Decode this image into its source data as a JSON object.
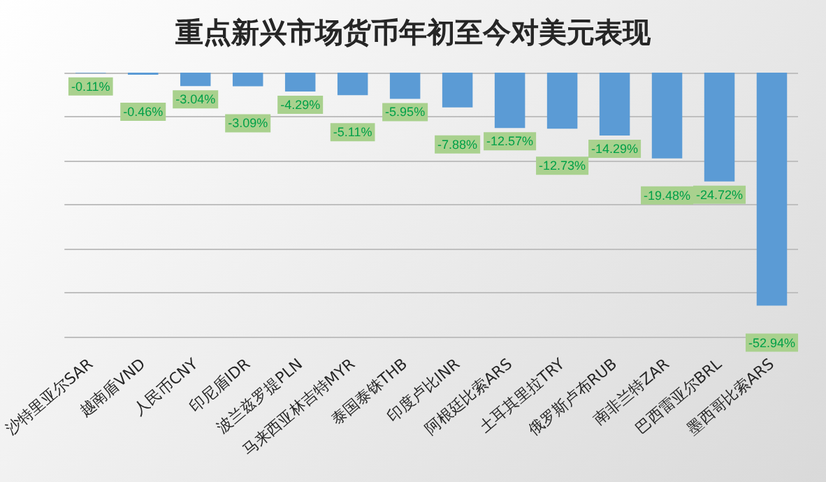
{
  "chart_data": {
    "type": "bar",
    "title": "重点新兴市场货币年初至今对美元表现",
    "categories": [
      "沙特里亚尔SAR",
      "越南盾VND",
      "人民币CNY",
      "印尼盾IDR",
      "波兰兹罗提PLN",
      "马来西亚林吉特MYR",
      "泰国泰铢THB",
      "印度卢比INR",
      "阿根廷比索ARS",
      "土耳其里拉TRY",
      "俄罗斯卢布RUB",
      "南非兰特ZAR",
      "巴西雷亚尔BRL",
      "墨西哥比索ARS"
    ],
    "values": [
      -0.11,
      -0.46,
      -3.04,
      -3.09,
      -4.29,
      -5.11,
      -5.95,
      -7.88,
      -12.57,
      -12.73,
      -14.29,
      -19.48,
      -24.72,
      -52.94
    ],
    "value_labels": [
      "-0.11%",
      "-0.46%",
      "-3.04%",
      "-3.09%",
      "-4.29%",
      "-5.11%",
      "-5.95%",
      "-7.88%",
      "-12.57%",
      "-12.73%",
      "-14.29%",
      "-19.48%",
      "-24.72%",
      "-52.94%"
    ],
    "color": "#5b9bd5",
    "ylim": [
      -60,
      0
    ],
    "yticks": [
      {
        "value": -60,
        "label": null
      },
      {
        "value": -50,
        "label": null
      },
      {
        "value": -40,
        "label": null
      },
      {
        "value": -30,
        "label": null
      },
      {
        "value": -20,
        "label": null
      },
      {
        "value": -10,
        "label": null
      },
      {
        "value": 0,
        "label": null
      }
    ],
    "tick_labels": "x",
    "grid": "y"
  }
}
